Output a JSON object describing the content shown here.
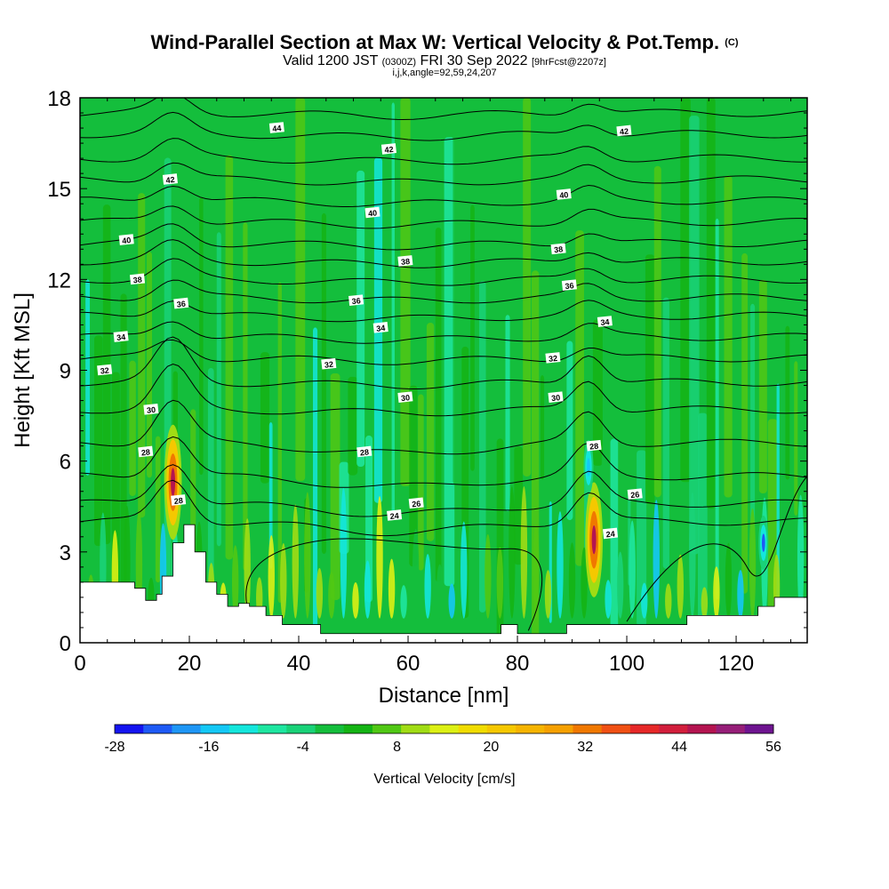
{
  "titles": {
    "main": "Wind-Parallel Section at Max W: Vertical Velocity & Pot.Temp.",
    "copyright": "(C)",
    "valid_prefix": "Valid 1200 JST",
    "valid_zulu": "(0300Z)",
    "valid_date": "FRI 30 Sep 2022",
    "forecast": "[9hrFcst@2207z]",
    "indices": "i,j,k,angle=92,59,24,207"
  },
  "chart_data": {
    "type": "heatmap",
    "xlabel": "Distance [nm]",
    "ylabel": "Height [Kft MSL]",
    "xlim": [
      0,
      133
    ],
    "ylim": [
      0,
      18
    ],
    "x_ticks": [
      0,
      20,
      40,
      60,
      80,
      100,
      120
    ],
    "y_ticks": [
      0,
      3,
      6,
      9,
      12,
      15,
      18
    ],
    "colorbar": {
      "label": "Vertical Velocity [cm/s]",
      "min": -28,
      "max": 56,
      "step": 4,
      "tick_labels": [
        -28,
        -16,
        -4,
        8,
        20,
        32,
        44,
        56
      ],
      "colors": [
        "#1414f0",
        "#1e5af5",
        "#1e96f5",
        "#14c8f5",
        "#14e6dc",
        "#1ee6a0",
        "#19d278",
        "#14be3c",
        "#14b414",
        "#50c814",
        "#a0dc14",
        "#dcf014",
        "#f0dc00",
        "#f5c800",
        "#f5b400",
        "#f5a000",
        "#f07800",
        "#f05014",
        "#e62828",
        "#d21e3c",
        "#b41450",
        "#961e78",
        "#6e1490"
      ]
    },
    "theta_contours": {
      "description_values": [
        24,
        26,
        28,
        30,
        32,
        34,
        36,
        38,
        40,
        42,
        44
      ],
      "labels": [
        {
          "text": "44",
          "x": 36.0,
          "y": 17.0
        },
        {
          "text": "42",
          "x": 16.5,
          "y": 15.3
        },
        {
          "text": "42",
          "x": 56.5,
          "y": 16.3
        },
        {
          "text": "42",
          "x": 99.5,
          "y": 16.9
        },
        {
          "text": "40",
          "x": 8.5,
          "y": 13.3
        },
        {
          "text": "40",
          "x": 53.5,
          "y": 14.2
        },
        {
          "text": "40",
          "x": 88.5,
          "y": 14.8
        },
        {
          "text": "38",
          "x": 10.5,
          "y": 12.0
        },
        {
          "text": "38",
          "x": 59.5,
          "y": 12.6
        },
        {
          "text": "38",
          "x": 87.5,
          "y": 13.0
        },
        {
          "text": "36",
          "x": 18.5,
          "y": 11.2
        },
        {
          "text": "36",
          "x": 50.5,
          "y": 11.3
        },
        {
          "text": "36",
          "x": 89.5,
          "y": 11.8
        },
        {
          "text": "34",
          "x": 7.5,
          "y": 10.1
        },
        {
          "text": "34",
          "x": 55.0,
          "y": 10.4
        },
        {
          "text": "34",
          "x": 96.0,
          "y": 10.6
        },
        {
          "text": "32",
          "x": 4.5,
          "y": 9.0
        },
        {
          "text": "32",
          "x": 45.5,
          "y": 9.2
        },
        {
          "text": "32",
          "x": 86.5,
          "y": 9.4
        },
        {
          "text": "30",
          "x": 13.0,
          "y": 7.7
        },
        {
          "text": "30",
          "x": 59.5,
          "y": 8.1
        },
        {
          "text": "30",
          "x": 87.0,
          "y": 8.1
        },
        {
          "text": "28",
          "x": 12.0,
          "y": 6.3
        },
        {
          "text": "28",
          "x": 52.0,
          "y": 6.3
        },
        {
          "text": "28",
          "x": 94.0,
          "y": 6.5
        },
        {
          "text": "28",
          "x": 18.0,
          "y": 4.7
        },
        {
          "text": "26",
          "x": 61.5,
          "y": 4.6
        },
        {
          "text": "26",
          "x": 101.5,
          "y": 4.9
        },
        {
          "text": "24",
          "x": 57.5,
          "y": 4.2
        },
        {
          "text": "24",
          "x": 97.0,
          "y": 3.6
        }
      ]
    },
    "updraft_cores": [
      {
        "x": 17.0,
        "y": 5.3,
        "value": 52
      },
      {
        "x": 94.0,
        "y": 3.4,
        "value": 52
      },
      {
        "x": 93.0,
        "y": 5.8,
        "value": -14
      },
      {
        "x": 125.0,
        "y": 3.3,
        "value": -24
      }
    ],
    "terrain_kft": [
      [
        0,
        2.0
      ],
      [
        5,
        2.0
      ],
      [
        10,
        1.8
      ],
      [
        12,
        1.4
      ],
      [
        14,
        1.6
      ],
      [
        15,
        2.2
      ],
      [
        17,
        3.3
      ],
      [
        19,
        3.9
      ],
      [
        21,
        3.0
      ],
      [
        23,
        2.0
      ],
      [
        25,
        1.6
      ],
      [
        27,
        1.2
      ],
      [
        29,
        1.3
      ],
      [
        31,
        1.2
      ],
      [
        34,
        0.9
      ],
      [
        37,
        0.6
      ],
      [
        41,
        0.6
      ],
      [
        44,
        0.3
      ],
      [
        51,
        0.3
      ],
      [
        58,
        0.3
      ],
      [
        66,
        0.3
      ],
      [
        75,
        0.3
      ],
      [
        77,
        0.6
      ],
      [
        80,
        0.3
      ],
      [
        82,
        0.3
      ],
      [
        89,
        0.6
      ],
      [
        94,
        0.6
      ],
      [
        100,
        0.6
      ],
      [
        111,
        0.9
      ],
      [
        120,
        0.9
      ],
      [
        124,
        1.2
      ],
      [
        127,
        1.5
      ],
      [
        133,
        1.5
      ]
    ]
  }
}
